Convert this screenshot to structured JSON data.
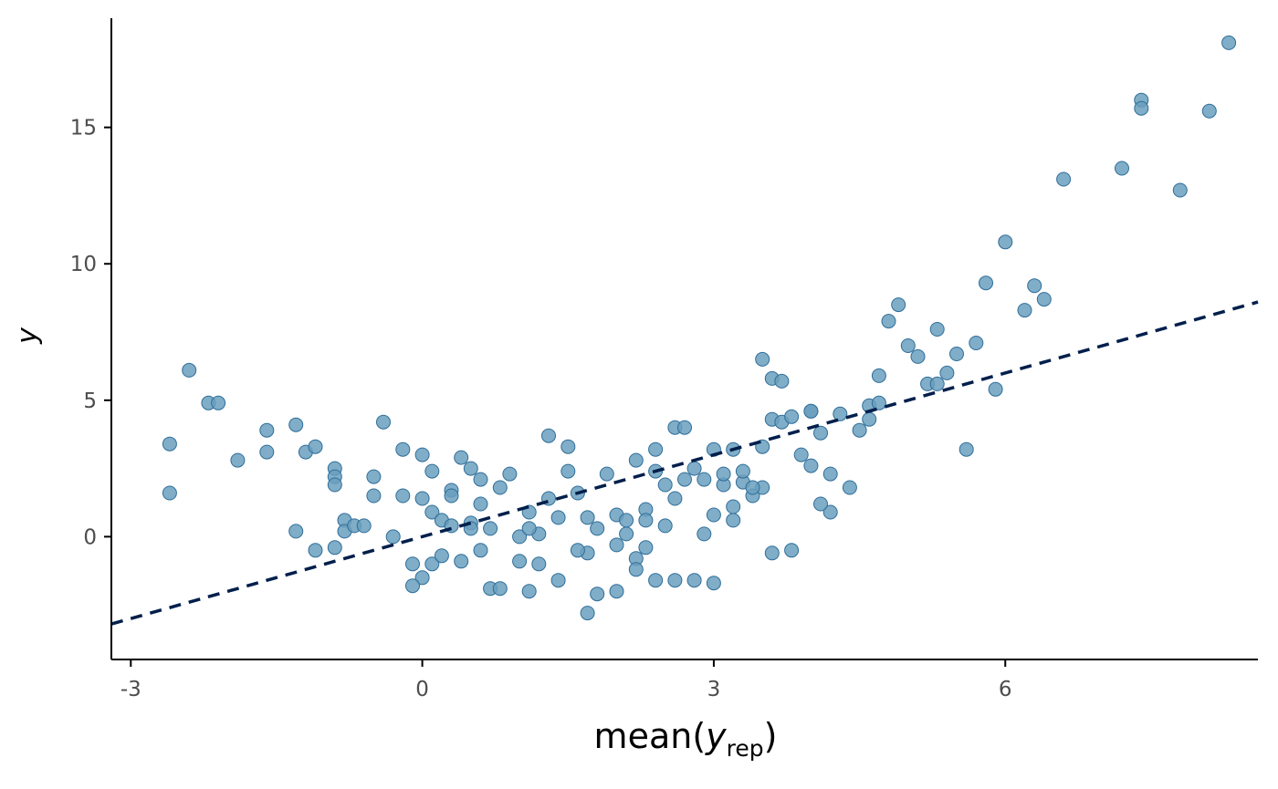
{
  "chart_data": {
    "type": "scatter",
    "xlabel": "mean",
    "xlabel_symbol": "y",
    "xlabel_subscript": "rep",
    "ylabel": "y",
    "xlim": [
      -3.2,
      8.6
    ],
    "ylim": [
      -4.5,
      19.0
    ],
    "x_ticks": [
      -3,
      0,
      3,
      6
    ],
    "x_tick_labels": [
      "-3",
      "0",
      "3",
      "6"
    ],
    "y_ticks": [
      0,
      5,
      10,
      15
    ],
    "y_tick_labels": [
      "0",
      "5",
      "10",
      "15"
    ],
    "grid": false,
    "legend": "none",
    "reference_line": {
      "slope": 1,
      "intercept": 0,
      "style": "dashed",
      "color": "#011f4b"
    },
    "point_color": "#6a9fbd",
    "point_edge_color": "#2f6e9a",
    "x": [
      -2.6,
      -2.6,
      -2.4,
      -2.2,
      -2.1,
      -1.9,
      -1.6,
      -1.6,
      -1.3,
      -1.3,
      -1.2,
      -1.1,
      -1.1,
      -0.9,
      -0.9,
      -0.9,
      -0.9,
      -0.8,
      -0.8,
      -0.7,
      -0.6,
      -0.5,
      -0.5,
      -0.4,
      -0.3,
      -0.2,
      -0.2,
      -0.1,
      0.0,
      0.0,
      0.0,
      0.1,
      0.1,
      0.1,
      0.2,
      0.3,
      0.3,
      0.3,
      0.4,
      0.5,
      0.5,
      0.6,
      0.6,
      0.7,
      0.7,
      0.8,
      0.9,
      1.0,
      1.1,
      1.1,
      1.2,
      1.3,
      1.3,
      1.4,
      1.5,
      1.5,
      1.6,
      1.7,
      1.7,
      1.8,
      1.9,
      2.0,
      2.0,
      2.1,
      2.1,
      2.2,
      2.2,
      2.3,
      2.3,
      2.4,
      2.4,
      2.5,
      2.5,
      2.6,
      2.6,
      2.7,
      2.7,
      2.8,
      2.9,
      3.0,
      3.0,
      3.1,
      3.1,
      3.2,
      3.2,
      3.3,
      3.3,
      3.4,
      3.5,
      3.5,
      3.6,
      3.6,
      3.7,
      3.7,
      3.8,
      3.9,
      4.0,
      4.0,
      4.1,
      4.2,
      4.3,
      4.4,
      4.5,
      4.6,
      4.7,
      4.8,
      4.9,
      5.0,
      5.1,
      5.2,
      5.3,
      5.4,
      5.5,
      5.6,
      5.7,
      5.8,
      5.9,
      6.0,
      6.2,
      6.3,
      6.4,
      6.6,
      7.2,
      7.4,
      7.4,
      7.8,
      8.1,
      8.3,
      0.2,
      0.6,
      1.0,
      1.4,
      1.8,
      2.2,
      2.6,
      3.0,
      3.4,
      3.8,
      4.2,
      4.6,
      0.4,
      0.8,
      1.2,
      1.6,
      2.0,
      2.4,
      2.8,
      3.2,
      3.6,
      4.0,
      -0.1,
      0.5,
      1.1,
      1.7,
      2.3,
      2.9,
      3.5,
      4.1,
      4.7,
      5.3
    ],
    "y": [
      1.6,
      3.4,
      6.1,
      4.9,
      4.9,
      2.8,
      3.9,
      3.1,
      4.1,
      0.2,
      3.1,
      3.3,
      -0.5,
      2.5,
      2.2,
      1.9,
      -0.4,
      0.6,
      0.2,
      0.4,
      0.4,
      2.2,
      1.5,
      4.2,
      0.0,
      3.2,
      1.5,
      -1.0,
      3.0,
      1.4,
      -1.5,
      2.4,
      0.9,
      -1.0,
      0.6,
      1.7,
      1.5,
      0.4,
      2.9,
      0.5,
      2.5,
      1.2,
      2.1,
      0.3,
      -1.9,
      1.8,
      2.3,
      0.0,
      0.9,
      -2.0,
      0.1,
      3.7,
      1.4,
      0.7,
      3.3,
      2.4,
      1.6,
      0.7,
      -0.6,
      0.3,
      2.3,
      0.8,
      -2.0,
      0.6,
      0.1,
      2.8,
      -0.8,
      1.0,
      0.6,
      3.2,
      2.4,
      1.9,
      0.4,
      1.4,
      4.0,
      2.1,
      4.0,
      2.5,
      2.1,
      3.2,
      0.8,
      1.9,
      2.3,
      3.2,
      0.6,
      2.0,
      2.4,
      1.5,
      6.5,
      1.8,
      5.8,
      4.3,
      4.2,
      5.7,
      4.4,
      3.0,
      2.6,
      4.6,
      3.8,
      2.3,
      4.5,
      1.8,
      3.9,
      4.3,
      5.9,
      7.9,
      8.5,
      7.0,
      6.6,
      5.6,
      7.6,
      6.0,
      6.7,
      3.2,
      7.1,
      9.3,
      5.4,
      10.8,
      8.3,
      9.2,
      8.7,
      13.1,
      13.5,
      16.0,
      15.7,
      12.7,
      15.6,
      18.1,
      -0.7,
      -0.5,
      -0.9,
      -1.6,
      -2.1,
      -1.2,
      -1.6,
      -1.7,
      1.8,
      -0.5,
      0.9,
      4.8,
      -0.9,
      -1.9,
      -1.0,
      -0.5,
      -0.3,
      -1.6,
      -1.6,
      1.1,
      -0.6,
      4.6,
      -1.8,
      0.3,
      0.3,
      -2.8,
      -0.4,
      0.1,
      3.3,
      1.2,
      4.9,
      5.6
    ]
  }
}
